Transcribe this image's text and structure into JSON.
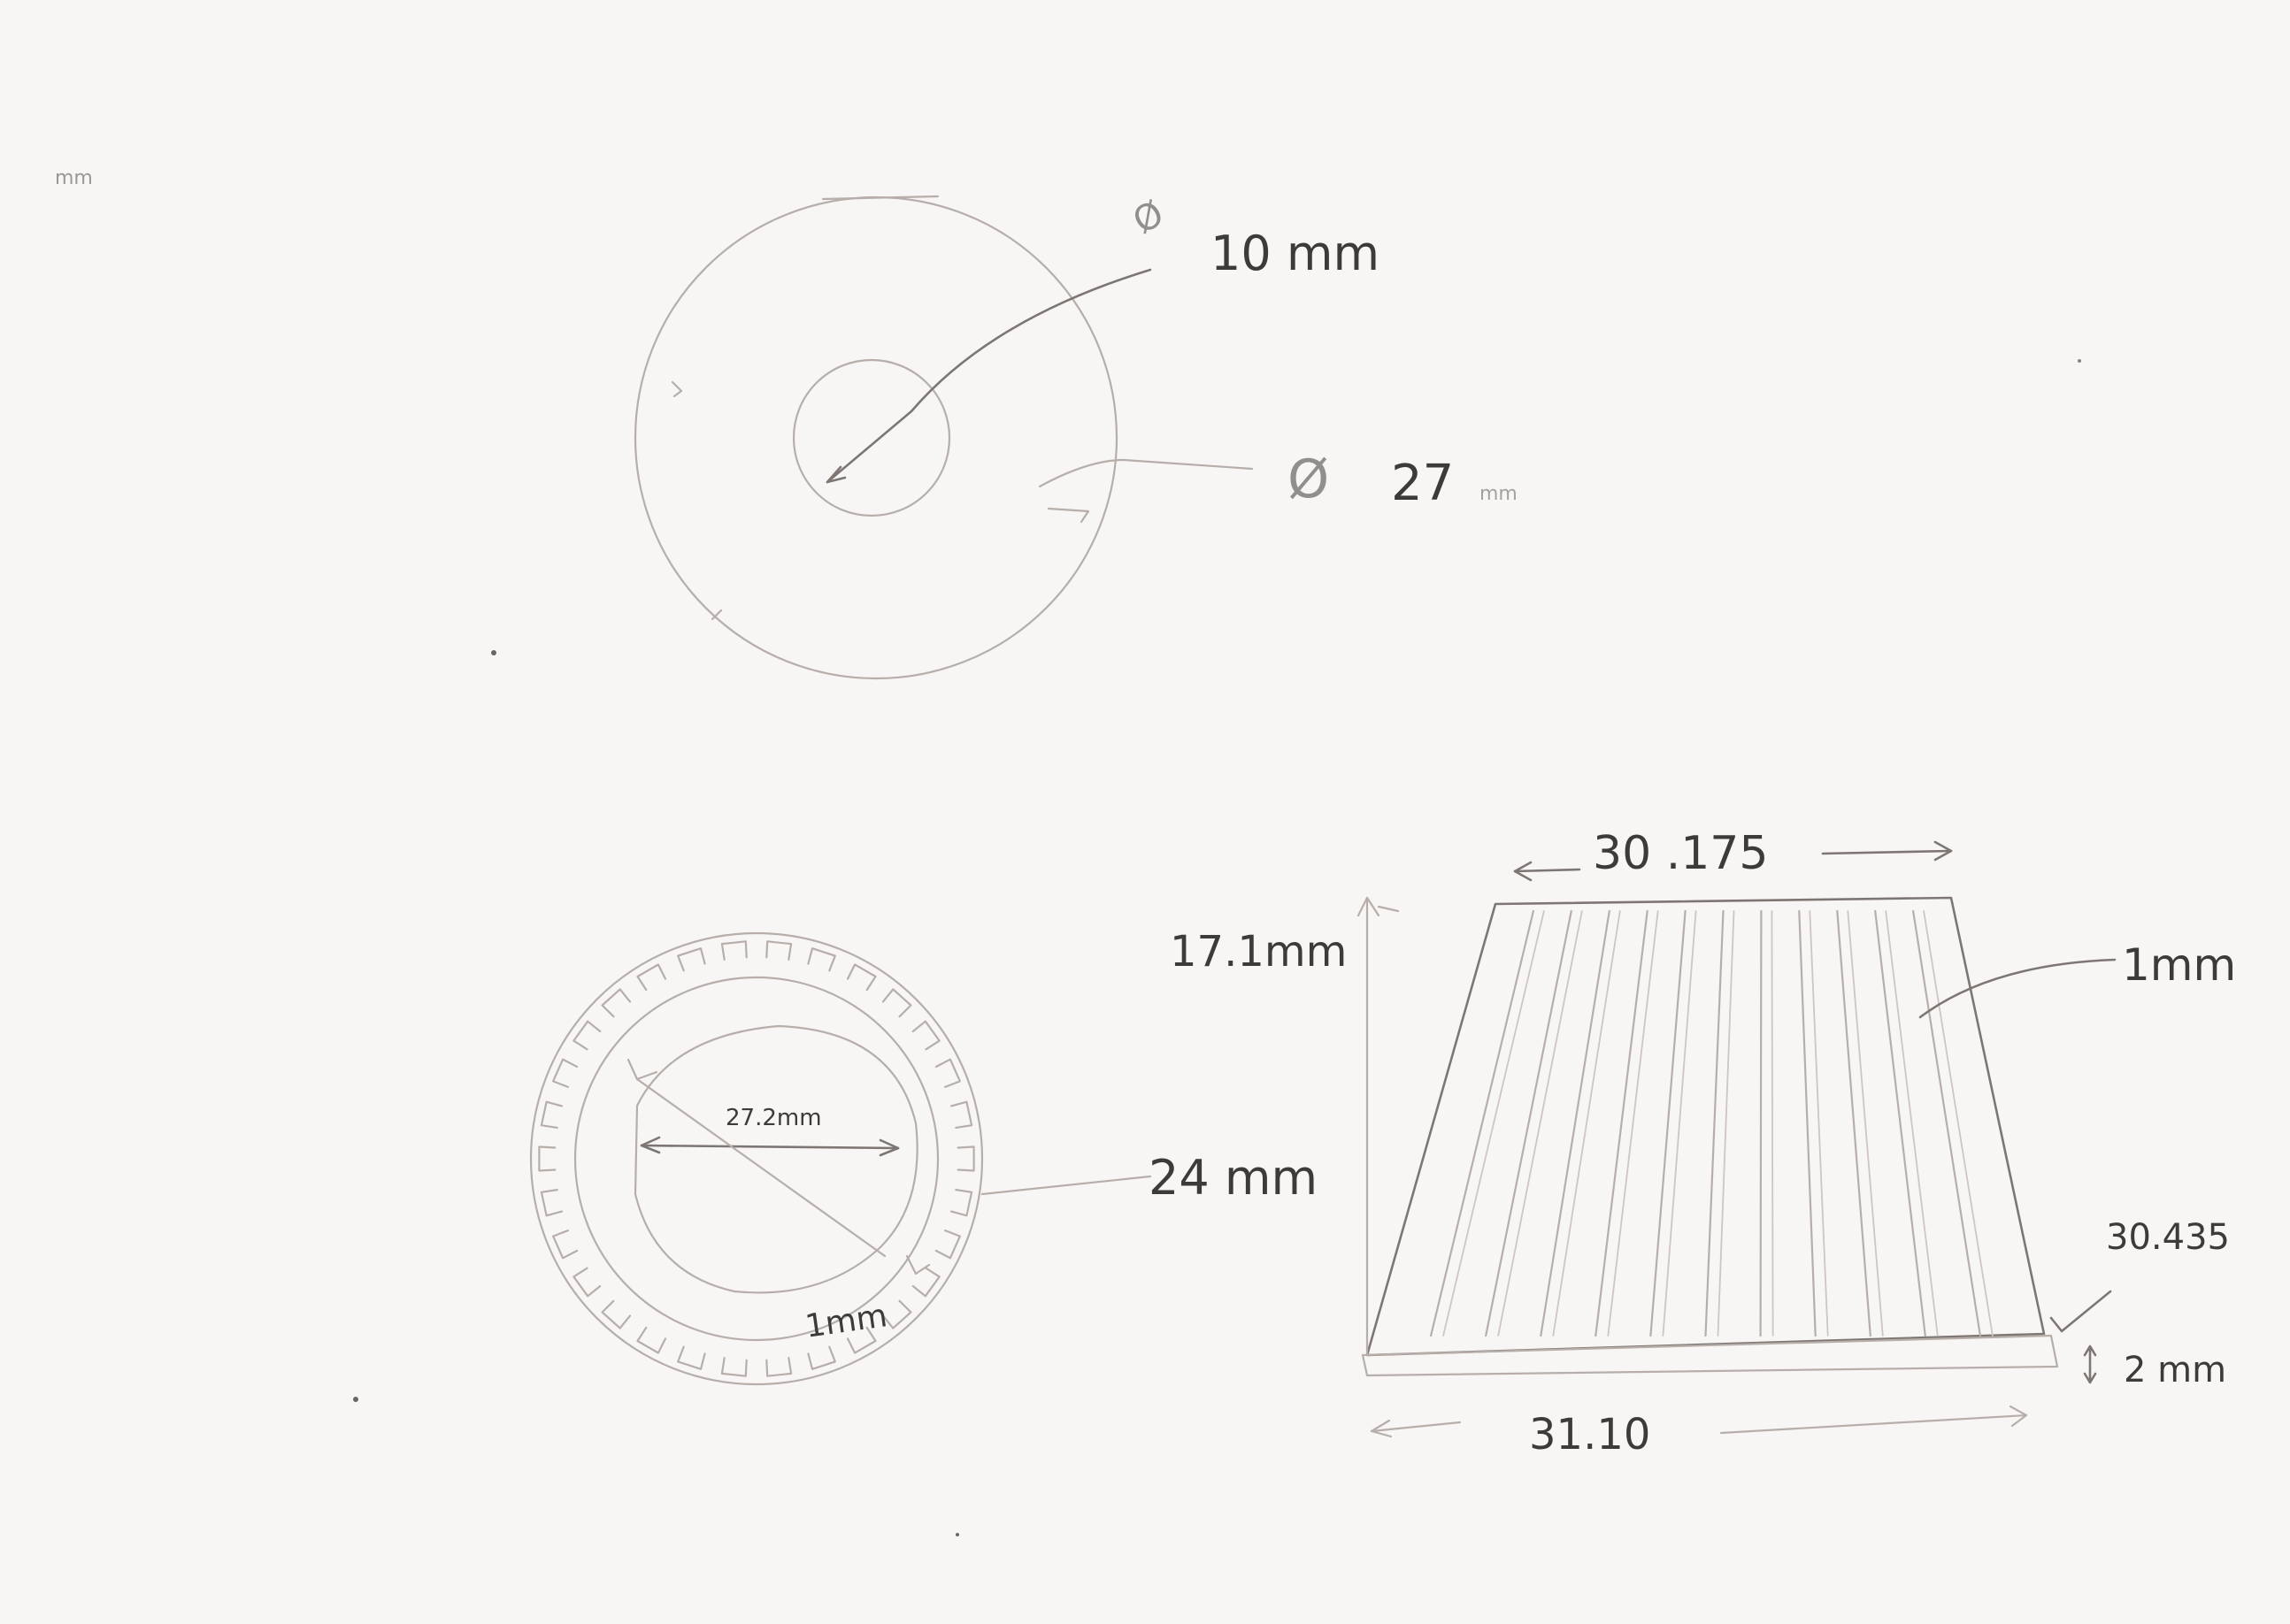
{
  "labels": {
    "top_dia_symbol": "Ø",
    "top_inner": "10 mm",
    "top_outer_symbol": "Ø",
    "top_outer_value": "27",
    "top_outer_unit": "mm",
    "corner_note": "mm",
    "gear_inner": "27.2mm",
    "gear_outer": "24 mm",
    "gear_tooth": "1mm",
    "cone_top": "30 .175",
    "cone_height": "17.1mm",
    "cone_wall": "1mm",
    "cone_slant": "30.435",
    "cone_base_thickness": "2 mm",
    "cone_bottom": "31.10"
  },
  "colors": {
    "paper": "#f7f6f4",
    "pencil": "#b7aeaa",
    "pencil_dark": "#7e7673",
    "ink": "#3c3b3a"
  }
}
